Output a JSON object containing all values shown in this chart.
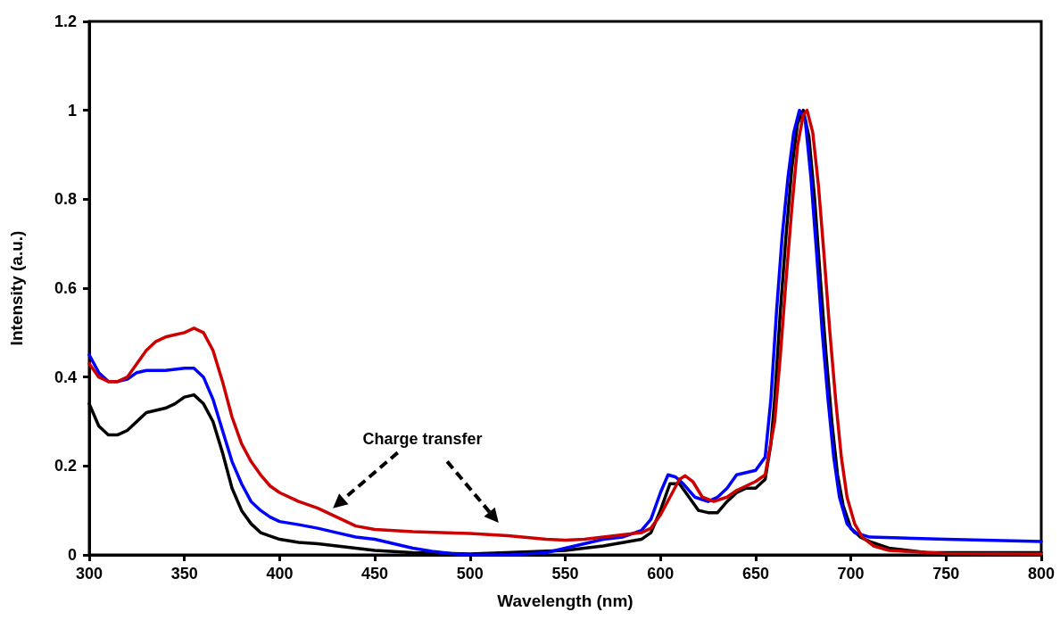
{
  "chart_data": {
    "type": "line",
    "xlabel": "Wavelength (nm)",
    "ylabel": "Intensity (a.u.)",
    "annotations": [
      "Charge transfer"
    ],
    "xlim": [
      300,
      800
    ],
    "xticks": [
      300,
      350,
      400,
      450,
      500,
      550,
      600,
      650,
      700,
      750,
      800
    ],
    "ylim": [
      0,
      1.2
    ],
    "yticks": [
      0,
      0.2,
      0.4,
      0.6,
      0.8,
      1,
      1.2
    ],
    "grid": false,
    "marker": "none",
    "line_style": "solid",
    "series": [
      {
        "color": "#000000",
        "x": [
          300,
          305,
          310,
          315,
          320,
          325,
          330,
          340,
          345,
          350,
          355,
          360,
          365,
          370,
          375,
          380,
          385,
          390,
          400,
          410,
          420,
          430,
          440,
          450,
          470,
          500,
          550,
          570,
          590,
          595,
          600,
          605,
          610,
          615,
          620,
          625,
          630,
          635,
          640,
          645,
          650,
          655,
          658,
          660,
          663,
          666,
          669,
          672,
          675,
          678,
          681,
          684,
          687,
          690,
          693,
          696,
          700,
          705,
          710,
          720,
          740,
          800
        ],
        "values": [
          0.34,
          0.29,
          0.27,
          0.27,
          0.28,
          0.3,
          0.32,
          0.33,
          0.34,
          0.355,
          0.36,
          0.34,
          0.3,
          0.23,
          0.15,
          0.1,
          0.07,
          0.05,
          0.035,
          0.028,
          0.025,
          0.02,
          0.015,
          0.01,
          0.005,
          0.002,
          0.01,
          0.02,
          0.035,
          0.05,
          0.1,
          0.16,
          0.16,
          0.13,
          0.1,
          0.095,
          0.095,
          0.12,
          0.14,
          0.15,
          0.15,
          0.17,
          0.25,
          0.35,
          0.55,
          0.72,
          0.87,
          0.97,
          1,
          0.94,
          0.8,
          0.62,
          0.45,
          0.3,
          0.18,
          0.11,
          0.06,
          0.04,
          0.03,
          0.015,
          0.005,
          0.005
        ]
      },
      {
        "color": "#0000ff",
        "x": [
          300,
          305,
          310,
          315,
          320,
          325,
          330,
          340,
          350,
          355,
          360,
          365,
          370,
          375,
          380,
          385,
          390,
          395,
          400,
          410,
          420,
          430,
          440,
          450,
          460,
          470,
          480,
          490,
          500,
          520,
          540,
          550,
          560,
          570,
          580,
          590,
          595,
          600,
          604,
          608,
          612,
          618,
          625,
          630,
          635,
          640,
          645,
          650,
          655,
          658,
          661,
          664,
          667,
          670,
          673,
          676,
          679,
          682,
          685,
          688,
          691,
          694,
          698,
          702,
          710,
          750,
          800
        ],
        "values": [
          0.45,
          0.41,
          0.39,
          0.39,
          0.395,
          0.41,
          0.415,
          0.415,
          0.42,
          0.42,
          0.4,
          0.35,
          0.28,
          0.21,
          0.16,
          0.12,
          0.1,
          0.085,
          0.075,
          0.068,
          0.06,
          0.05,
          0.04,
          0.035,
          0.025,
          0.015,
          0.008,
          0.003,
          0,
          0,
          0.005,
          0.015,
          0.025,
          0.035,
          0.04,
          0.055,
          0.08,
          0.14,
          0.18,
          0.175,
          0.16,
          0.13,
          0.12,
          0.13,
          0.15,
          0.18,
          0.185,
          0.19,
          0.22,
          0.35,
          0.55,
          0.72,
          0.85,
          0.95,
          1,
          0.98,
          0.85,
          0.68,
          0.5,
          0.35,
          0.22,
          0.13,
          0.07,
          0.05,
          0.04,
          0.035,
          0.03
        ]
      },
      {
        "color": "#cc0000",
        "x": [
          300,
          305,
          310,
          315,
          320,
          325,
          330,
          335,
          340,
          345,
          350,
          355,
          360,
          365,
          370,
          375,
          380,
          385,
          390,
          395,
          400,
          410,
          420,
          430,
          440,
          450,
          470,
          500,
          520,
          540,
          550,
          560,
          570,
          580,
          590,
          595,
          600,
          605,
          610,
          613,
          617,
          622,
          628,
          635,
          640,
          645,
          650,
          655,
          660,
          663,
          666,
          669,
          672,
          675,
          677,
          680,
          683,
          686,
          689,
          692,
          695,
          698,
          702,
          706,
          712,
          720,
          750,
          800
        ],
        "values": [
          0.43,
          0.4,
          0.39,
          0.39,
          0.4,
          0.43,
          0.46,
          0.48,
          0.49,
          0.495,
          0.5,
          0.51,
          0.5,
          0.46,
          0.39,
          0.31,
          0.25,
          0.21,
          0.18,
          0.155,
          0.14,
          0.12,
          0.105,
          0.085,
          0.065,
          0.057,
          0.052,
          0.048,
          0.043,
          0.035,
          0.033,
          0.035,
          0.04,
          0.045,
          0.05,
          0.06,
          0.09,
          0.13,
          0.17,
          0.178,
          0.165,
          0.13,
          0.12,
          0.13,
          0.145,
          0.155,
          0.165,
          0.18,
          0.3,
          0.45,
          0.62,
          0.78,
          0.92,
          0.99,
          1,
          0.95,
          0.83,
          0.67,
          0.5,
          0.35,
          0.22,
          0.13,
          0.07,
          0.04,
          0.02,
          0.01,
          0.003,
          0.002
        ]
      }
    ]
  }
}
